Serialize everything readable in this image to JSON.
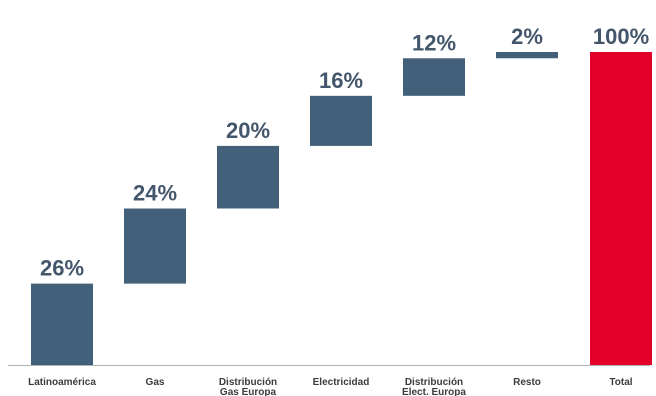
{
  "chart_data": {
    "type": "bar",
    "subtype": "waterfall",
    "categories": [
      "Latinoamérica",
      "Gas",
      "Distribución Gas Europa",
      "Electricidad",
      "Distribución Elect. Europa",
      "Resto",
      "Total"
    ],
    "category_lines": [
      [
        "Latinoamérica"
      ],
      [
        "Gas"
      ],
      [
        "Distribución",
        "Gas Europa"
      ],
      [
        "Electricidad"
      ],
      [
        "Distribución",
        "Elect. Europa"
      ],
      [
        "Resto"
      ],
      [
        "Total"
      ]
    ],
    "values": [
      26,
      24,
      20,
      16,
      12,
      2,
      100
    ],
    "value_labels": [
      "26%",
      "24%",
      "20%",
      "16%",
      "12%",
      "2%",
      "100%"
    ],
    "total_index": 6,
    "ylim": [
      0,
      100
    ],
    "grid": false,
    "colors": {
      "segment": "#43607a",
      "total": "#e2002b",
      "label": "#43566b",
      "axis": "#b0b0b0"
    }
  }
}
